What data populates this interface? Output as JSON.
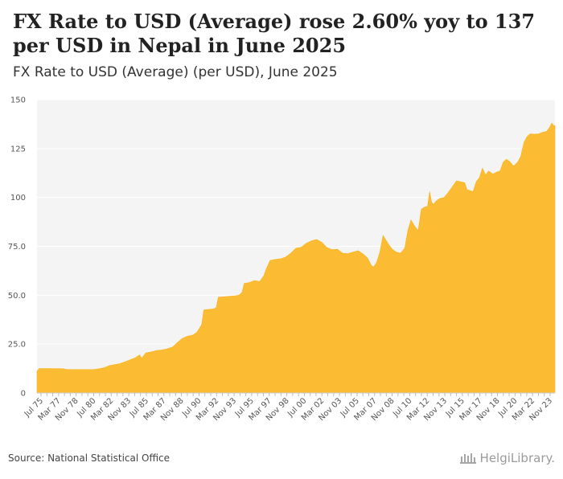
{
  "header": {
    "title": "FX Rate to USD (Average) rose 2.60% yoy to 137 per USD in Nepal in June 2025",
    "subtitle": "FX Rate to USD (Average) (per USD), June 2025"
  },
  "footer": {
    "source": "Source: National Statistical Office",
    "brand": "HelgiLibrary."
  },
  "colors": {
    "area": "#fbbc33",
    "area_edge": "#f7b21a",
    "plot_bg": "#f4f4f4",
    "grid": "#ffffff"
  },
  "chart_data": {
    "type": "area",
    "title": "FX Rate to USD (Average) (per USD), June 2025",
    "xlabel": "",
    "ylabel": "",
    "ylim": [
      0,
      150
    ],
    "yticks": [
      0,
      25.0,
      50.0,
      75.0,
      100,
      125,
      150
    ],
    "ytick_labels": [
      "0",
      "25.0",
      "50.0",
      "75.0",
      "100",
      "125",
      "150"
    ],
    "xlim": [
      1975.5,
      2025.5
    ],
    "xtick_labels": [
      "Jul 75",
      "Mar 77",
      "Nov 78",
      "Jul 80",
      "Mar 82",
      "Nov 83",
      "Jul 85",
      "Mar 87",
      "Nov 88",
      "Jul 90",
      "Mar 92",
      "Nov 93",
      "Jul 95",
      "Mar 97",
      "Nov 98",
      "Jul 00",
      "Mar 02",
      "Nov 03",
      "Jul 05",
      "Mar 07",
      "Nov 08",
      "Jul 10",
      "Mar 12",
      "Nov 13",
      "Jul 15",
      "Mar 17",
      "Nov 18",
      "Jul 20",
      "Mar 22",
      "Nov 23"
    ],
    "series": [
      {
        "name": "FX Rate to USD (Average)",
        "x": [
          1975.5,
          1975.7,
          1976.0,
          1977.0,
          1978.0,
          1978.4,
          1979.0,
          1980.0,
          1981.0,
          1981.6,
          1982.0,
          1982.5,
          1983.0,
          1983.5,
          1984.0,
          1984.5,
          1985.0,
          1985.4,
          1985.6,
          1986.0,
          1986.8,
          1987.0,
          1987.5,
          1988.0,
          1988.6,
          1989.0,
          1989.5,
          1990.0,
          1990.5,
          1990.8,
          1991.0,
          1991.4,
          1991.6,
          1992.0,
          1992.5,
          1992.8,
          1993.0,
          1993.5,
          1994.0,
          1994.5,
          1995.0,
          1995.3,
          1995.5,
          1996.0,
          1996.5,
          1997.0,
          1997.4,
          1997.6,
          1998.0,
          1998.5,
          1999.0,
          1999.5,
          2000.0,
          2000.5,
          2001.0,
          2001.5,
          2002.0,
          2002.5,
          2003.0,
          2003.5,
          2004.0,
          2004.5,
          2005.0,
          2005.5,
          2006.0,
          2006.5,
          2007.0,
          2007.4,
          2007.8,
          2008.0,
          2008.3,
          2008.6,
          2008.9,
          2009.2,
          2009.5,
          2009.8,
          2010.2,
          2010.6,
          2011.0,
          2011.3,
          2011.6,
          2012.0,
          2012.3,
          2012.6,
          2012.9,
          2013.2,
          2013.4,
          2013.6,
          2013.8,
          2014.0,
          2014.4,
          2014.8,
          2015.2,
          2015.6,
          2016.0,
          2016.4,
          2016.8,
          2017.0,
          2017.3,
          2017.6,
          2017.9,
          2018.2,
          2018.5,
          2018.8,
          2019.1,
          2019.5,
          2019.9,
          2020.2,
          2020.5,
          2020.8,
          2021.1,
          2021.5,
          2021.9,
          2022.2,
          2022.5,
          2022.8,
          2023.1,
          2023.5,
          2023.9,
          2024.3,
          2024.7,
          2025.0,
          2025.2,
          2025.4,
          2025.5
        ],
        "values": [
          11.0,
          12.5,
          12.5,
          12.5,
          12.4,
          12.0,
          12.0,
          12.0,
          12.0,
          12.5,
          13.0,
          14.0,
          14.5,
          15.0,
          16.0,
          17.0,
          18.0,
          19.5,
          17.7,
          20.5,
          21.3,
          21.7,
          22.0,
          22.5,
          23.5,
          25.5,
          27.8,
          29.0,
          29.5,
          30.5,
          31.5,
          35.0,
          42.5,
          42.7,
          43.0,
          43.5,
          49.0,
          49.2,
          49.4,
          49.6,
          50.0,
          51.5,
          56.0,
          56.5,
          57.5,
          57.0,
          60.0,
          63.0,
          67.8,
          68.3,
          68.6,
          69.5,
          71.5,
          74.0,
          74.5,
          76.5,
          77.8,
          78.5,
          77.0,
          74.3,
          73.3,
          73.5,
          71.5,
          71.2,
          72.0,
          72.8,
          71.0,
          69.0,
          65.0,
          64.5,
          67.0,
          72.0,
          80.5,
          78.0,
          75.5,
          73.5,
          72.0,
          71.5,
          74.0,
          83.0,
          88.5,
          85.0,
          83.0,
          94.0,
          95.0,
          95.5,
          103.0,
          97.5,
          96.5,
          98.0,
          99.5,
          100.0,
          102.5,
          105.5,
          108.5,
          108.0,
          107.5,
          104.0,
          103.5,
          103.0,
          108.0,
          110.0,
          115.0,
          111.5,
          113.5,
          112.0,
          113.0,
          113.5,
          118.0,
          119.5,
          118.5,
          116.0,
          118.0,
          121.0,
          128.0,
          131.0,
          132.5,
          132.3,
          132.5,
          133.3,
          133.8,
          136.0,
          138.0,
          136.5,
          136.8
        ]
      }
    ]
  }
}
